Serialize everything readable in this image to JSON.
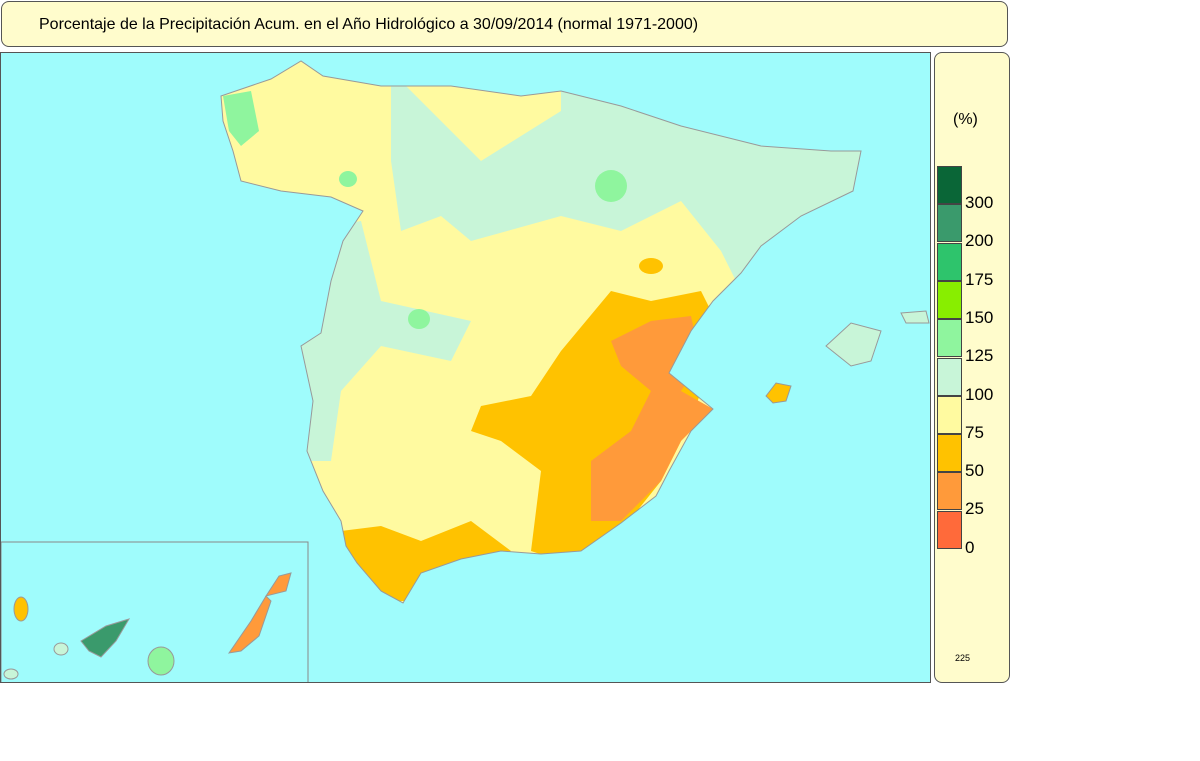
{
  "title": "Porcentaje de la Precipitación Acum. en el Año Hidrológico a 30/09/2014  (normal 1971-2000)",
  "legend": {
    "unit": "(%)",
    "colors": [
      "#0a6637",
      "#3a9a6c",
      "#2ec46c",
      "#88ee00",
      "#8ff59e",
      "#c8f5d8",
      "#fffaa0",
      "#ffc200",
      "#ff9a3a",
      "#ff6a3a"
    ],
    "labels": [
      "300",
      "200",
      "175",
      "150",
      "125",
      "100",
      "75",
      "50",
      "25",
      "0"
    ],
    "code": "225"
  },
  "map": {
    "sea_color": "#9ffcfc",
    "regions": [
      "Península",
      "Baleares",
      "Canarias"
    ]
  }
}
